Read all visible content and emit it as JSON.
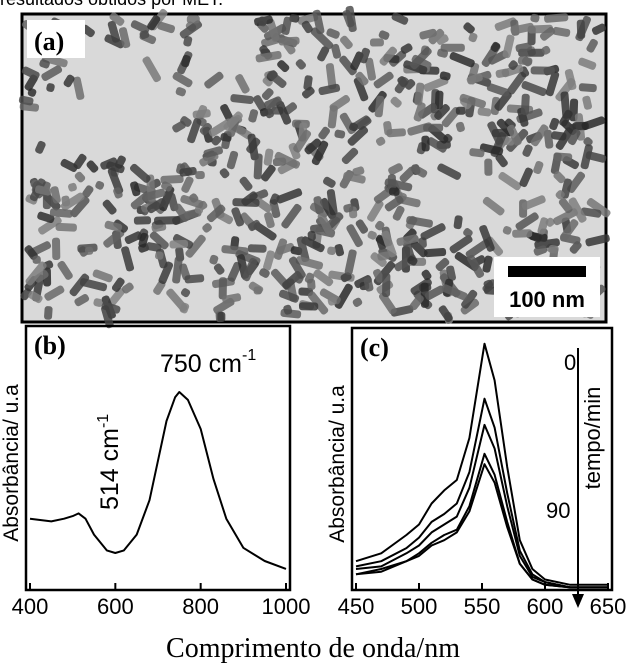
{
  "caption_fragment": "resultados obtidos por MET.",
  "panel_a": {
    "label": "(a)",
    "scale_bar": "100 nm"
  },
  "x_label": "Comprimento de onda/nm",
  "chart_data": [
    {
      "type": "line",
      "panel_label": "(b)",
      "y_label": "Absorbância/ u.a",
      "annotations": [
        {
          "text": "514 cm",
          "sup": "-1"
        },
        {
          "text": "750 cm",
          "sup": "-1"
        }
      ],
      "x": [
        400,
        450,
        480,
        500,
        514,
        530,
        550,
        580,
        600,
        620,
        650,
        680,
        700,
        720,
        740,
        750,
        770,
        800,
        830,
        860,
        900,
        950,
        1000
      ],
      "series": [
        {
          "color": "#000000",
          "values": [
            0.27,
            0.26,
            0.27,
            0.28,
            0.29,
            0.27,
            0.21,
            0.15,
            0.14,
            0.15,
            0.21,
            0.34,
            0.49,
            0.64,
            0.73,
            0.75,
            0.72,
            0.61,
            0.42,
            0.27,
            0.16,
            0.11,
            0.08
          ]
        }
      ],
      "xlim": [
        400,
        1000
      ],
      "xticks": [
        400,
        600,
        800,
        1000
      ],
      "ylim": [
        0,
        1
      ]
    },
    {
      "type": "line",
      "panel_label": "(c)",
      "y_label": "Absorbância/ u.a",
      "annotations": [
        {
          "text": "0"
        },
        {
          "text": "90"
        },
        {
          "text": "tempo/min"
        }
      ],
      "x": [
        450,
        470,
        490,
        500,
        510,
        520,
        530,
        540,
        552,
        560,
        570,
        580,
        590,
        600,
        620,
        650
      ],
      "series": [
        {
          "color": "#000000",
          "values": [
            0.11,
            0.14,
            0.21,
            0.25,
            0.33,
            0.38,
            0.42,
            0.58,
            0.94,
            0.8,
            0.47,
            0.19,
            0.08,
            0.04,
            0.02,
            0.02
          ]
        },
        {
          "color": "#000000",
          "values": [
            0.09,
            0.11,
            0.16,
            0.2,
            0.26,
            0.29,
            0.33,
            0.45,
            0.73,
            0.62,
            0.37,
            0.15,
            0.06,
            0.03,
            0.01,
            0.01
          ]
        },
        {
          "color": "#000000",
          "values": [
            0.08,
            0.09,
            0.14,
            0.17,
            0.22,
            0.25,
            0.28,
            0.39,
            0.63,
            0.54,
            0.32,
            0.13,
            0.05,
            0.03,
            0.01,
            0.01
          ]
        },
        {
          "color": "#000000",
          "values": [
            0.06,
            0.08,
            0.11,
            0.14,
            0.18,
            0.21,
            0.23,
            0.32,
            0.52,
            0.44,
            0.26,
            0.1,
            0.04,
            0.02,
            0.01,
            0.01
          ]
        },
        {
          "color": "#000000",
          "values": [
            0.06,
            0.07,
            0.11,
            0.13,
            0.17,
            0.19,
            0.22,
            0.3,
            0.48,
            0.41,
            0.24,
            0.1,
            0.04,
            0.02,
            0.01,
            0.01
          ]
        }
      ],
      "xlim": [
        450,
        650
      ],
      "xticks": [
        450,
        500,
        550,
        600,
        650
      ],
      "ylim": [
        0,
        1
      ]
    }
  ]
}
